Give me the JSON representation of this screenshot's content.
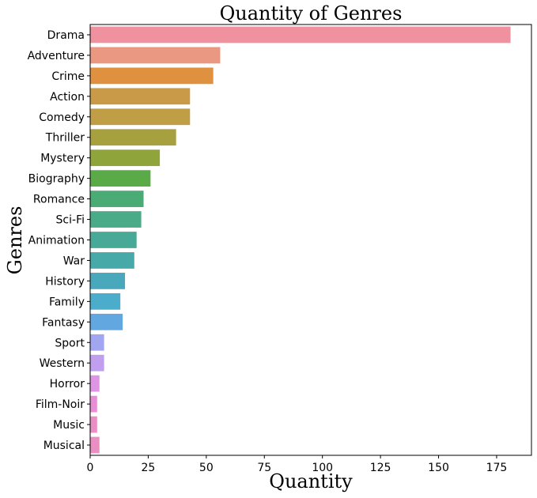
{
  "chart_data": {
    "type": "bar",
    "orientation": "horizontal",
    "title": "Quantity of Genres",
    "xlabel": "Quantity",
    "ylabel": "Genres",
    "xlim": [
      0,
      190
    ],
    "xticks": [
      0,
      25,
      50,
      75,
      100,
      125,
      150,
      175
    ],
    "grid": false,
    "categories": [
      "Drama",
      "Adventure",
      "Crime",
      "Action",
      "Comedy",
      "Thriller",
      "Mystery",
      "Biography",
      "Romance",
      "Sci-Fi",
      "Animation",
      "War",
      "History",
      "Family",
      "Fantasy",
      "Sport",
      "Western",
      "Horror",
      "Film-Noir",
      "Music",
      "Musical"
    ],
    "values": [
      181,
      56,
      53,
      43,
      43,
      37,
      30,
      26,
      23,
      22,
      20,
      19,
      15,
      13,
      14,
      6,
      6,
      4,
      3,
      3,
      4
    ],
    "colors": [
      "#f0919f",
      "#eb9882",
      "#e0913f",
      "#c99b49",
      "#bf9e45",
      "#a6a03f",
      "#8fa53c",
      "#5aab47",
      "#4aab74",
      "#49ab87",
      "#48a996",
      "#47aaa8",
      "#49a8bc",
      "#4caccc",
      "#63a7e0",
      "#a2a6f0",
      "#c0a0ee",
      "#de96e4",
      "#e88ed6",
      "#ea8ec4",
      "#eb8fc2"
    ]
  }
}
